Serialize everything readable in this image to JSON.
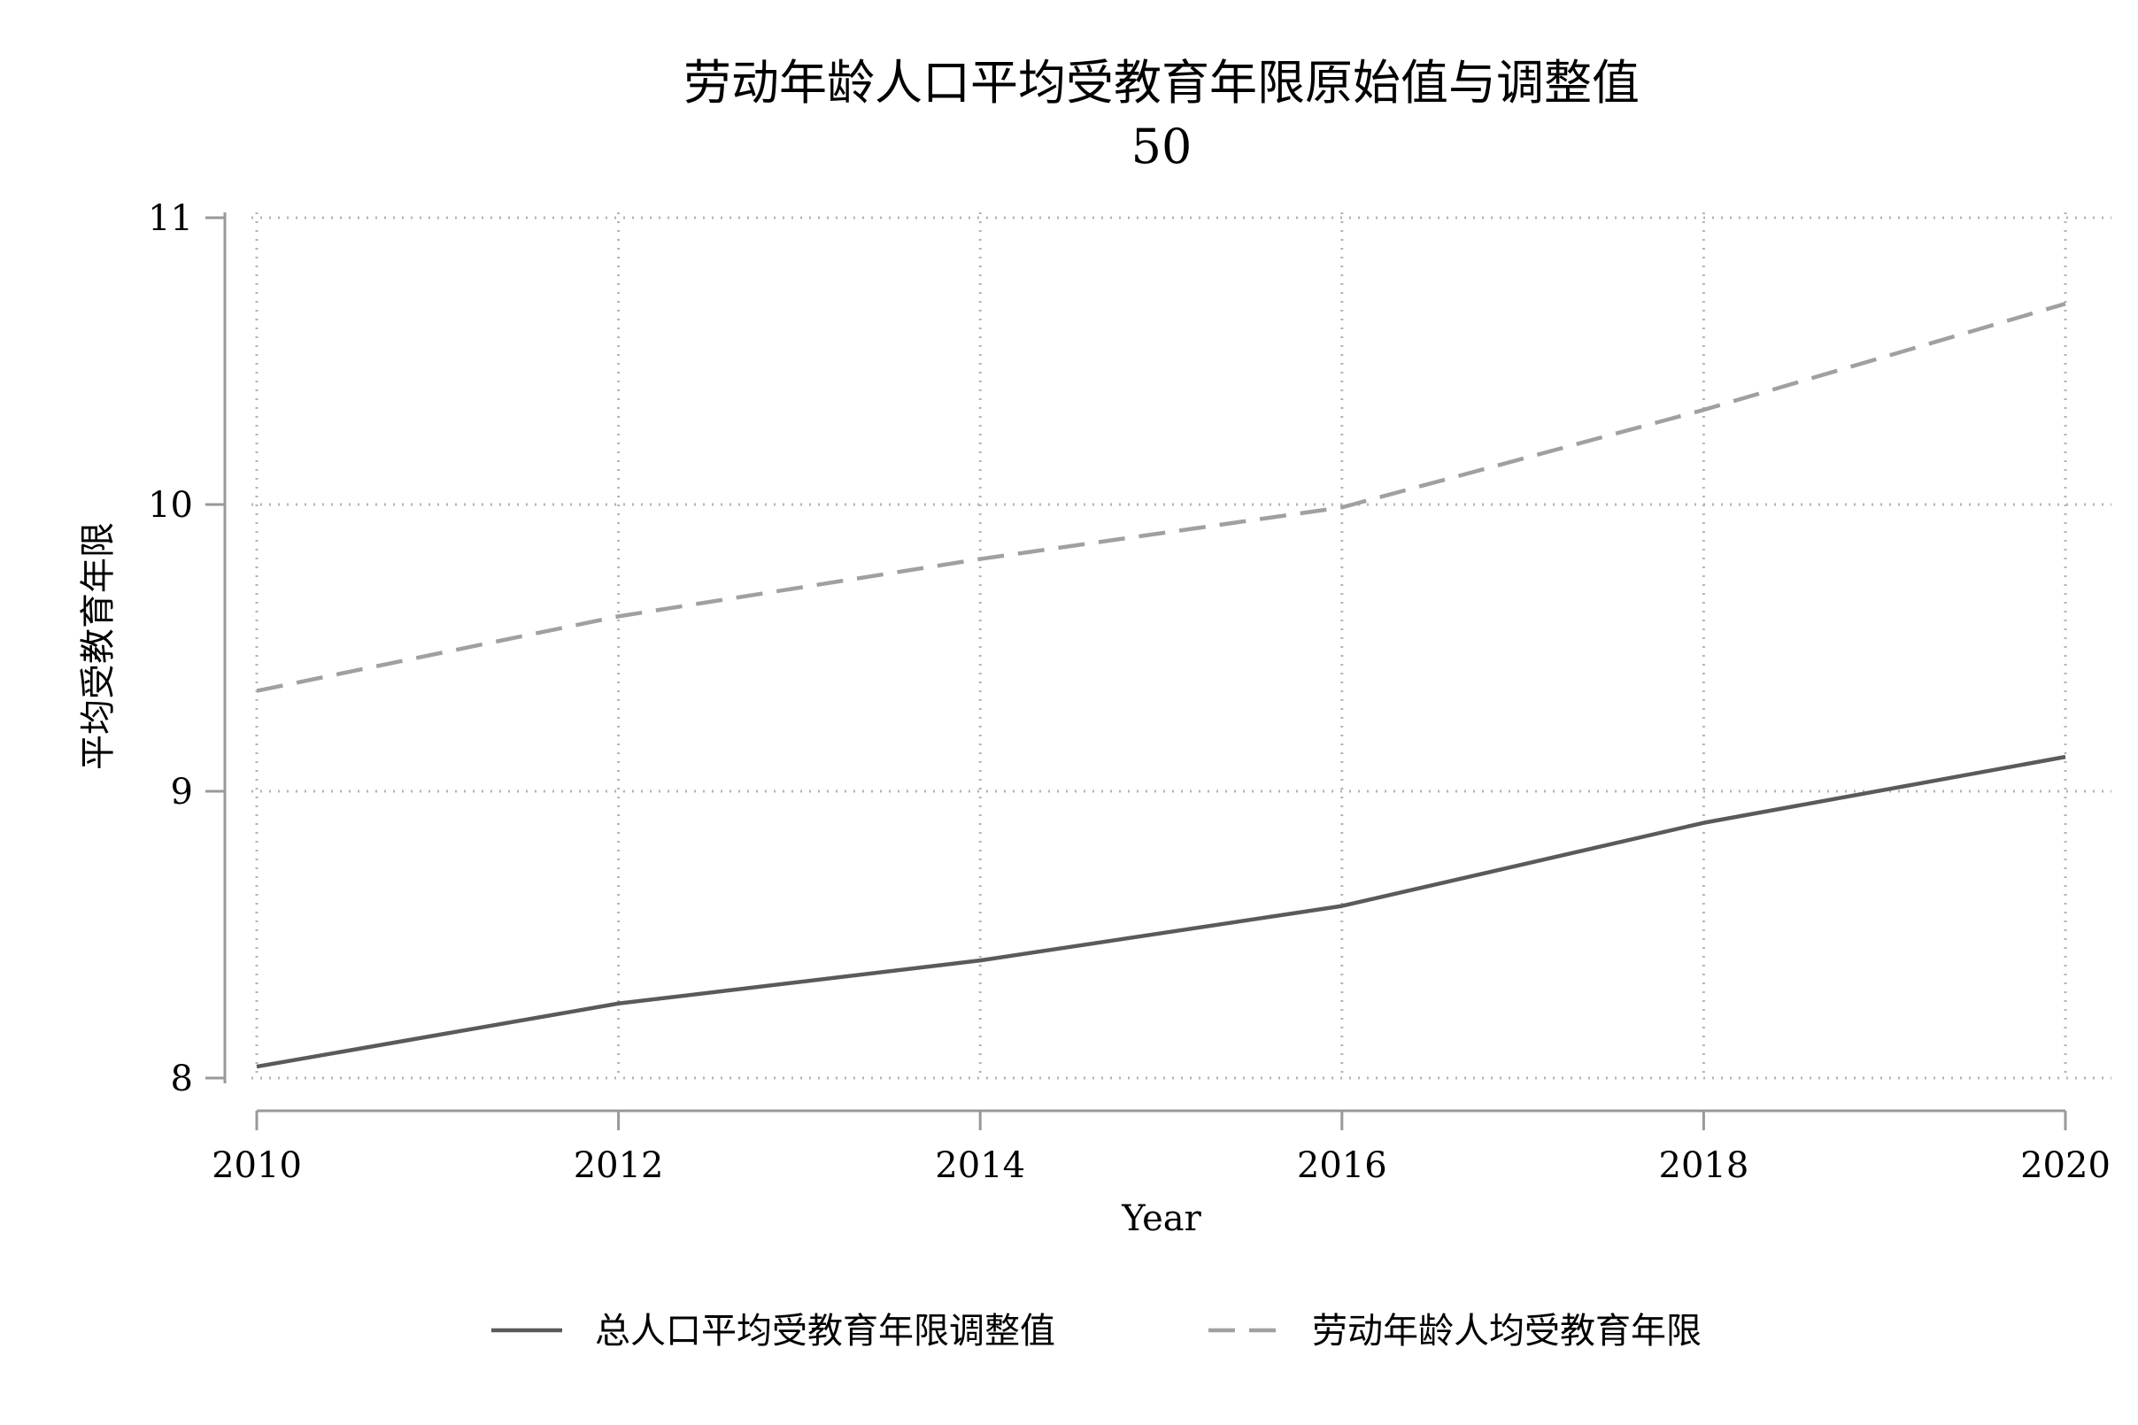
{
  "chart_data": {
    "type": "line",
    "title": "劳动年龄人口平均受教育年限原始值与调整值",
    "subtitle": "50",
    "xlabel": "Year",
    "ylabel": "平均受教育年限",
    "x": [
      2010,
      2012,
      2014,
      2016,
      2018,
      2020
    ],
    "xlim": [
      2010,
      2020
    ],
    "ylim": [
      8,
      11
    ],
    "xticks": [
      "2010",
      "2012",
      "2014",
      "2016",
      "2018",
      "2020"
    ],
    "yticks": [
      "8",
      "9",
      "10",
      "11"
    ],
    "grid": true,
    "legend_position": "bottom",
    "series": [
      {
        "name": "总人口平均受教育年限调整值",
        "values": [
          8.04,
          8.26,
          8.41,
          8.6,
          8.89,
          9.12
        ],
        "color": "#5a5a5a",
        "style": "solid"
      },
      {
        "name": "劳动年龄人均受教育年限",
        "values": [
          9.35,
          9.61,
          9.81,
          9.99,
          10.33,
          10.7
        ],
        "color": "#a0a0a0",
        "style": "dashed"
      }
    ]
  }
}
